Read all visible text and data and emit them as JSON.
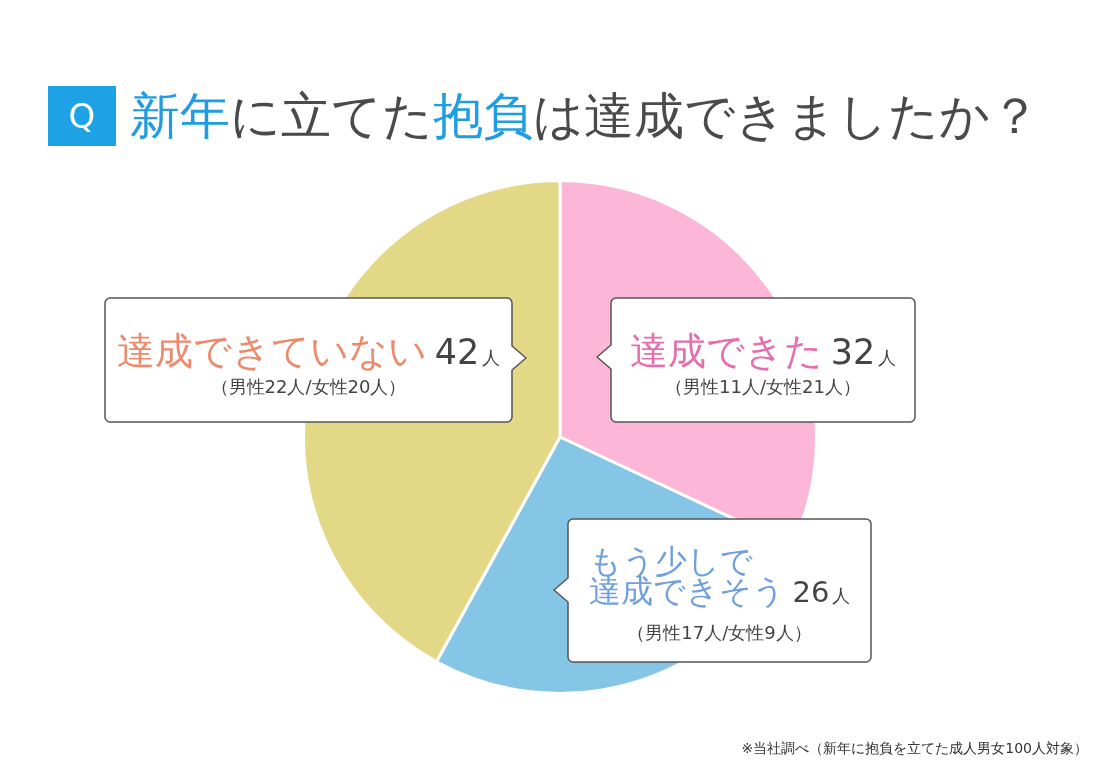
{
  "chart_data": {
    "type": "pie",
    "title": "新年に立てた抱負は達成できましたか？",
    "categories": [
      "達成できた",
      "もう少しで達成できそう",
      "達成できていない"
    ],
    "values": [
      32,
      26,
      42
    ],
    "colors": [
      "#fbb6d8",
      "#85c6e6",
      "#e3d886"
    ],
    "value_labels": [
      "32人",
      "26人",
      "42人"
    ],
    "annotations": [
      "Q",
      "（男性11人/女性21人）",
      "（男性17人/女性9人）",
      "（男性22人/女性20人）",
      "※当社調べ（新年に抱負を立てた成人男女100人対象）"
    ]
  }
}
